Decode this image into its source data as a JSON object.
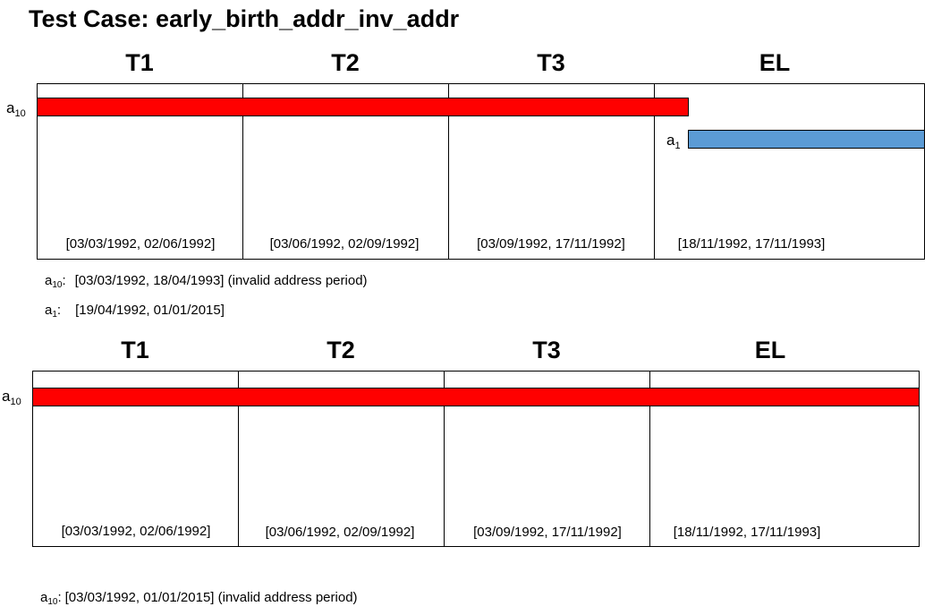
{
  "title": "Test Case: early_birth_addr_inv_addr",
  "colors": {
    "invalid_bar": "#ff0000",
    "valid_bar": "#5b9bd5"
  },
  "panel1": {
    "columns": [
      {
        "name": "T1",
        "range": "[03/03/1992, 02/06/1992]"
      },
      {
        "name": "T2",
        "range": "[03/06/1992, 02/09/1992]"
      },
      {
        "name": "T3",
        "range": "[03/09/1992, 17/11/1992]"
      },
      {
        "name": "EL",
        "range": "[18/11/1992, 17/11/1993]"
      }
    ],
    "bars": [
      {
        "base": "a",
        "sub": "10",
        "color": "red"
      },
      {
        "base": "a",
        "sub": "1",
        "color": "blue"
      }
    ],
    "legend": [
      {
        "base": "a",
        "sub": "10",
        "sep": ":",
        "value": "[03/03/1992, 18/04/1993] (invalid address period)"
      },
      {
        "base": "a",
        "sub": "1",
        "sep": ":",
        "value": "[19/04/1992, 01/01/2015]"
      }
    ]
  },
  "panel2": {
    "columns": [
      {
        "name": "T1",
        "range": "[03/03/1992, 02/06/1992]"
      },
      {
        "name": "T2",
        "range": "[03/06/1992, 02/09/1992]"
      },
      {
        "name": "T3",
        "range": "[03/09/1992, 17/11/1992]"
      },
      {
        "name": "EL",
        "range": "[18/11/1992, 17/11/1993]"
      }
    ],
    "bars": [
      {
        "base": "a",
        "sub": "10",
        "color": "red"
      }
    ],
    "legend": [
      {
        "base": "a",
        "sub": "10",
        "sep": ":",
        "value": "[03/03/1992, 01/01/2015] (invalid address period)"
      }
    ]
  }
}
